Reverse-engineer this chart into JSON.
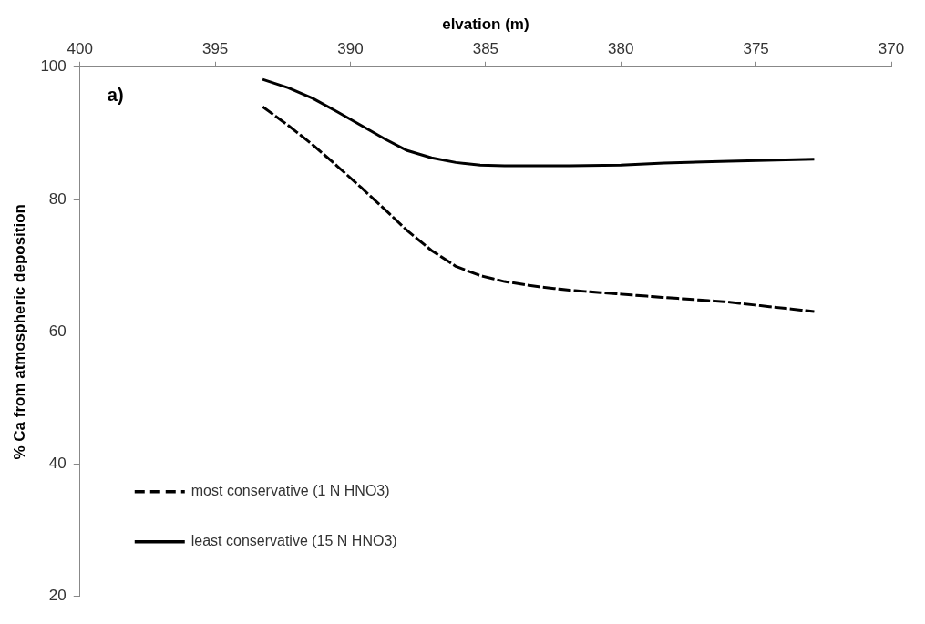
{
  "chart_data": {
    "type": "line",
    "xlabel": "elvation (m)",
    "ylabel": "% Ca from atmospheric deposition",
    "annotations": [
      "a)"
    ],
    "xlim": [
      400,
      370
    ],
    "xticks": [
      400,
      395,
      390,
      385,
      380,
      375,
      370
    ],
    "ylim": [
      20,
      100
    ],
    "yticks": [
      20,
      40,
      60,
      80,
      100
    ],
    "grid": false,
    "legend": "bottom left",
    "marker": "none",
    "series": [
      {
        "name": "most conservative (1 N HNO3)",
        "color": "#000000",
        "line_style": "dashed",
        "x": [
          393.2,
          392.3,
          391.4,
          390.5,
          389.6,
          388.7,
          387.9,
          387,
          386.1,
          385.2,
          384.3,
          383,
          381.9,
          380,
          378.4,
          376,
          374.5,
          372.9
        ],
        "values": [
          93.9,
          91.2,
          88.3,
          85.1,
          81.8,
          78.4,
          75.3,
          72.3,
          69.9,
          68.5,
          67.6,
          66.8,
          66.3,
          65.7,
          65.2,
          64.5,
          63.8,
          63.1
        ]
      },
      {
        "name": "least conservative (15 N HNO3)",
        "color": "#000000",
        "line_style": "solid",
        "x": [
          393.2,
          392.3,
          391.4,
          390.5,
          389.6,
          388.7,
          387.9,
          387,
          386.1,
          385.2,
          384.3,
          381.9,
          380,
          378.4,
          376,
          372.9
        ],
        "values": [
          98.1,
          96.9,
          95.3,
          93.3,
          91.2,
          89.1,
          87.4,
          86.3,
          85.6,
          85.2,
          85.1,
          85.1,
          85.2,
          85.5,
          85.8,
          86.1
        ]
      }
    ]
  }
}
